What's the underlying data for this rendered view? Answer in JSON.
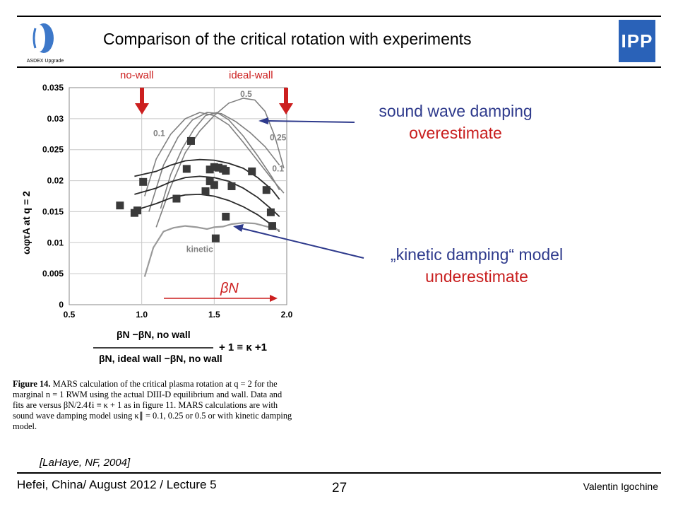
{
  "title": "Comparison of the critical rotation with experiments",
  "logo_left_text": "ASDEX Upgrade",
  "logo_right_text": "IPP",
  "markers": {
    "no_wall": "no-wall",
    "ideal_wall": "ideal-wall"
  },
  "annotations": {
    "sound_line1": "sound wave damping",
    "sound_line2": "overestimate",
    "kinetic_line1": "„kinetic damping“ model",
    "kinetic_line2": "underestimate"
  },
  "caption": {
    "label": "Figure 14.",
    "text": "MARS calculation of the critical plasma rotation at q = 2 for the marginal n = 1 RWM using the actual DIII-D equilibrium and wall. Data and fits are versus βN/2.4ℓi ≡ κ + 1 as in figure 11. MARS calculations are with sound wave damping model using κ∥ = 0.1, 0.25 or 0.5 or with kinetic damping model."
  },
  "citation": "[LaHaye, NF, 2004]",
  "footer": {
    "left": "Hefei, China/ August 2012 / Lecture 5",
    "page": "27",
    "right": "Valentin Igochine"
  },
  "colors": {
    "annotation_blue": "#2e3a8c",
    "annotation_red": "#c81e1e",
    "marker_red": "#cc1f1f",
    "logo_blue": "#2a62b8"
  },
  "chart_data": {
    "type": "scatter",
    "ylabel": "ωφτA at q = 2",
    "xlabel_numerator": "βN −βN, no wall",
    "xlabel_denominator": "βN, ideal wall −βN, no wall",
    "xlabel_suffix": "+ 1 ≡ κ +1",
    "beta_label": "βN",
    "xlim": [
      0.5,
      2.0
    ],
    "ylim": [
      0,
      0.035
    ],
    "xticks": [
      "0.5",
      "1.0",
      "1.5",
      "2.0"
    ],
    "yticks": [
      "0",
      "0.005",
      "0.01",
      "0.015",
      "0.02",
      "0.025",
      "0.03",
      "0.035"
    ],
    "grid": true,
    "points": [
      {
        "x": 0.85,
        "y": 0.016
      },
      {
        "x": 0.95,
        "y": 0.0148
      },
      {
        "x": 0.97,
        "y": 0.0152
      },
      {
        "x": 1.01,
        "y": 0.0198
      },
      {
        "x": 1.24,
        "y": 0.0171
      },
      {
        "x": 1.31,
        "y": 0.0219
      },
      {
        "x": 1.34,
        "y": 0.0264
      },
      {
        "x": 1.44,
        "y": 0.0183
      },
      {
        "x": 1.47,
        "y": 0.0218
      },
      {
        "x": 1.47,
        "y": 0.0199
      },
      {
        "x": 1.5,
        "y": 0.0222
      },
      {
        "x": 1.5,
        "y": 0.0193
      },
      {
        "x": 1.51,
        "y": 0.0107
      },
      {
        "x": 1.53,
        "y": 0.0221
      },
      {
        "x": 1.56,
        "y": 0.0219
      },
      {
        "x": 1.58,
        "y": 0.0216
      },
      {
        "x": 1.58,
        "y": 0.0142
      },
      {
        "x": 1.62,
        "y": 0.0191
      },
      {
        "x": 1.76,
        "y": 0.0215
      },
      {
        "x": 1.86,
        "y": 0.0185
      },
      {
        "x": 1.89,
        "y": 0.0149
      },
      {
        "x": 1.9,
        "y": 0.0127
      }
    ],
    "series": [
      {
        "name": "0.5",
        "x": [
          1.1,
          1.2,
          1.3,
          1.4,
          1.5,
          1.6,
          1.7,
          1.78,
          1.85,
          1.92,
          1.98
        ],
        "y": [
          0.0125,
          0.019,
          0.0245,
          0.028,
          0.0305,
          0.0325,
          0.0333,
          0.033,
          0.0312,
          0.027,
          0.022
        ]
      },
      {
        "name": "0.25",
        "x": [
          1.05,
          1.15,
          1.25,
          1.35,
          1.45,
          1.55,
          1.65,
          1.75,
          1.85,
          1.95
        ],
        "y": [
          0.015,
          0.0225,
          0.027,
          0.0298,
          0.031,
          0.0308,
          0.0295,
          0.0277,
          0.0255,
          0.0225
        ]
      },
      {
        "name": "0.1",
        "x": [
          1.02,
          1.1,
          1.2,
          1.3,
          1.4,
          1.5,
          1.6,
          1.7,
          1.8,
          1.9,
          1.98
        ],
        "y": [
          0.0175,
          0.0235,
          0.0275,
          0.03,
          0.031,
          0.0305,
          0.029,
          0.0262,
          0.0232,
          0.0202,
          0.018
        ]
      },
      {
        "name": "",
        "x": [
          1.13,
          1.2,
          1.28,
          1.36,
          1.44,
          1.52,
          1.6,
          1.7,
          1.8,
          1.9,
          1.95
        ],
        "y": [
          0.0155,
          0.021,
          0.0252,
          0.0283,
          0.0305,
          0.031,
          0.0298,
          0.0272,
          0.024,
          0.0205,
          0.0185
        ]
      },
      {
        "name": "",
        "x": [
          0.95,
          1.1,
          1.2,
          1.3,
          1.4,
          1.5,
          1.6,
          1.7,
          1.8,
          1.9,
          1.95
        ],
        "y": [
          0.0207,
          0.0215,
          0.0225,
          0.0232,
          0.0234,
          0.0233,
          0.0228,
          0.022,
          0.0205,
          0.0185,
          0.017
        ]
      },
      {
        "name": "",
        "x": [
          0.95,
          1.1,
          1.2,
          1.3,
          1.4,
          1.5,
          1.6,
          1.7,
          1.8,
          1.9,
          1.95
        ],
        "y": [
          0.0178,
          0.0188,
          0.0198,
          0.0205,
          0.0207,
          0.0205,
          0.0199,
          0.0188,
          0.0173,
          0.0153,
          0.0142
        ]
      },
      {
        "name": "",
        "x": [
          0.95,
          1.1,
          1.2,
          1.3,
          1.4,
          1.5,
          1.6,
          1.7,
          1.8,
          1.9,
          1.95
        ],
        "y": [
          0.0152,
          0.0163,
          0.0172,
          0.0177,
          0.0178,
          0.0175,
          0.0168,
          0.0158,
          0.0145,
          0.0128,
          0.0118
        ]
      },
      {
        "name": "kinetic",
        "x": [
          1.02,
          1.08,
          1.15,
          1.22,
          1.3,
          1.38,
          1.45,
          1.5,
          1.56,
          1.62,
          1.7,
          1.78,
          1.88,
          1.95
        ],
        "y": [
          0.0045,
          0.0092,
          0.0118,
          0.0124,
          0.0127,
          0.0125,
          0.0122,
          0.0125,
          0.0126,
          0.013,
          0.0132,
          0.0131,
          0.0125,
          0.012
        ]
      }
    ]
  }
}
